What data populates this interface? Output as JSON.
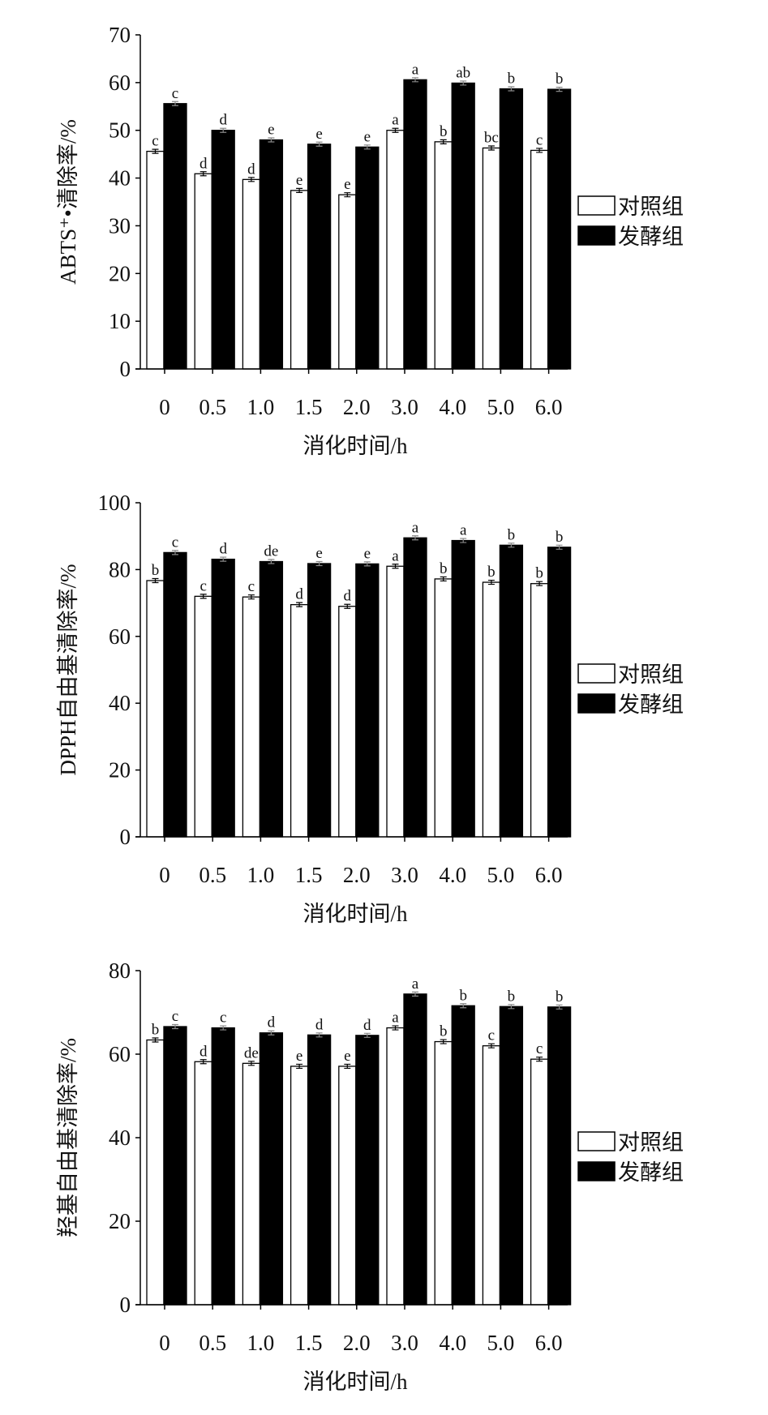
{
  "chart_data": [
    {
      "type": "bar",
      "categories": [
        "0",
        "0.5",
        "1.0",
        "1.5",
        "2.0",
        "3.0",
        "4.0",
        "5.0",
        "6.0"
      ],
      "xlabel": "消化时间/h",
      "ylabel": "ABTS⁺•清除率/%",
      "ylim": [
        0,
        70
      ],
      "yticks": [
        0,
        10,
        20,
        30,
        40,
        50,
        60,
        70
      ],
      "legend_position": "right",
      "series": [
        {
          "name": "对照组",
          "color": "#ffffff",
          "values": [
            45.6,
            40.9,
            39.7,
            37.4,
            36.5,
            50.0,
            47.6,
            46.3,
            45.8
          ],
          "labels": [
            "c",
            "d",
            "d",
            "e",
            "e",
            "a",
            "b",
            "bc",
            "c"
          ]
        },
        {
          "name": "发酵组",
          "color": "#000000",
          "values": [
            55.6,
            50.0,
            48.0,
            47.1,
            46.5,
            60.6,
            59.9,
            58.7,
            58.6
          ],
          "labels": [
            "c",
            "d",
            "e",
            "e",
            "e",
            "a",
            "ab",
            "b",
            "b"
          ]
        }
      ]
    },
    {
      "type": "bar",
      "categories": [
        "0",
        "0.5",
        "1.0",
        "1.5",
        "2.0",
        "3.0",
        "4.0",
        "5.0",
        "6.0"
      ],
      "xlabel": "消化时间/h",
      "ylabel": "DPPH自由基清除率/%",
      "ylim": [
        0,
        100
      ],
      "yticks": [
        0,
        20,
        40,
        60,
        80,
        100
      ],
      "legend_position": "right",
      "series": [
        {
          "name": "对照组",
          "color": "#ffffff",
          "values": [
            76.7,
            72.0,
            71.8,
            69.5,
            69.0,
            81.0,
            77.2,
            76.2,
            75.8
          ],
          "labels": [
            "b",
            "c",
            "c",
            "d",
            "d",
            "a",
            "b",
            "b",
            "b"
          ]
        },
        {
          "name": "发酵组",
          "color": "#000000",
          "values": [
            85.1,
            83.1,
            82.4,
            81.8,
            81.7,
            89.5,
            88.7,
            87.3,
            86.7
          ],
          "labels": [
            "c",
            "d",
            "de",
            "e",
            "e",
            "a",
            "a",
            "b",
            "b"
          ]
        }
      ]
    },
    {
      "type": "bar",
      "categories": [
        "0",
        "0.5",
        "1.0",
        "1.5",
        "2.0",
        "3.0",
        "4.0",
        "5.0",
        "6.0"
      ],
      "xlabel": "消化时间/h",
      "ylabel": "羟基自由基清除率/%",
      "ylim": [
        0,
        80
      ],
      "yticks": [
        0,
        20,
        40,
        60,
        80
      ],
      "legend_position": "right",
      "series": [
        {
          "name": "对照组",
          "color": "#ffffff",
          "values": [
            63.4,
            58.2,
            57.8,
            57.1,
            57.1,
            66.3,
            63.0,
            62.0,
            58.8
          ],
          "labels": [
            "b",
            "d",
            "de",
            "e",
            "e",
            "a",
            "b",
            "c",
            "c"
          ]
        },
        {
          "name": "发酵组",
          "color": "#000000",
          "values": [
            66.6,
            66.3,
            65.1,
            64.6,
            64.5,
            74.4,
            71.6,
            71.4,
            71.3
          ],
          "labels": [
            "c",
            "c",
            "d",
            "d",
            "d",
            "a",
            "b",
            "b",
            "b"
          ]
        }
      ]
    }
  ]
}
